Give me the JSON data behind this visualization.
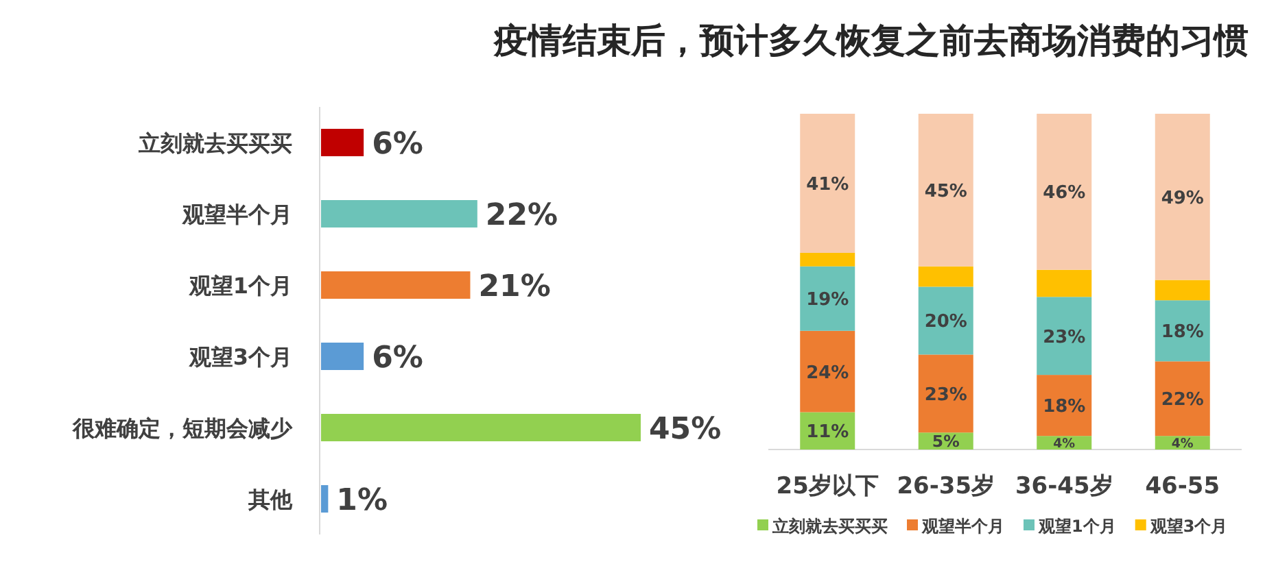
{
  "chart_data": [
    {
      "type": "bar",
      "orientation": "horizontal",
      "title": "疫情结束后，预计多久恢复之前去商场消费的习惯",
      "categories": [
        "立刻就去买买买",
        "观望半个月",
        "观望1个月",
        "观望3个月",
        "很难确定，短期会减少",
        "其他"
      ],
      "values": [
        6,
        22,
        21,
        6,
        45,
        1
      ],
      "colors": [
        "#c00000",
        "#6cc3b8",
        "#ed7d31",
        "#5b9bd5",
        "#92d050",
        "#5b9bd5"
      ],
      "value_labels": [
        "6%",
        "22%",
        "21%",
        "6%",
        "45%",
        "1%"
      ]
    },
    {
      "type": "bar",
      "stacked": true,
      "categories": [
        "25岁以下",
        "26-35岁",
        "36-45岁",
        "46-55"
      ],
      "legend": "bottom",
      "series": [
        {
          "name": "立刻就去买买买",
          "color": "#92d050",
          "values": [
            11,
            5,
            4,
            4
          ],
          "value_labels": [
            "11%",
            "5%",
            "4%",
            "4%"
          ]
        },
        {
          "name": "观望半个月",
          "color": "#ed7d31",
          "values": [
            24,
            23,
            18,
            22
          ],
          "value_labels": [
            "24%",
            "23%",
            "18%",
            "22%"
          ]
        },
        {
          "name": "观望1个月",
          "color": "#6cc3b8",
          "values": [
            19,
            20,
            23,
            18
          ],
          "value_labels": [
            "19%",
            "20%",
            "23%",
            "18%"
          ]
        },
        {
          "name": "观望3个月",
          "color": "#ffc000",
          "values": [
            4,
            6,
            8,
            6
          ],
          "value_labels": [
            null,
            null,
            null,
            null
          ]
        },
        {
          "color": "#f8cbad",
          "values": [
            41,
            45,
            46,
            49
          ],
          "value_labels": [
            "41%",
            "45%",
            "46%",
            "49%"
          ]
        }
      ]
    }
  ]
}
